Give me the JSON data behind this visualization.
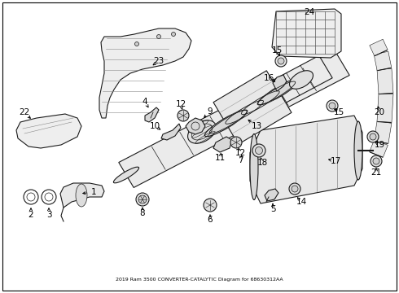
{
  "title": "2019 Ram 3500 CONVERTER-CATALYTIC Diagram for 68630312AA",
  "background_color": "#ffffff",
  "border_color": "#000000",
  "text_color": "#000000",
  "fig_width": 4.9,
  "fig_height": 3.6,
  "dpi": 100,
  "subtitle": "2019 Ram 3500 CONVERTER-CATALYTIC Diagram for 68630312AA",
  "label_fontsize": 7.5,
  "border_lw": 0.8,
  "line_color": "#1a1a1a",
  "fill_color": "#f0f0f0",
  "fill_dark": "#d8d8d8"
}
